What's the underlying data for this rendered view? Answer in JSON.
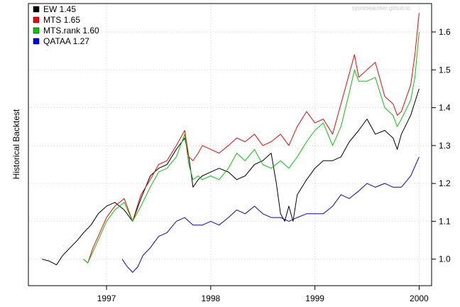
{
  "chart_data": {
    "type": "line",
    "title": "",
    "watermark": "sysresearcher.github.io",
    "ylabel": "Historical Backtest",
    "xlabel": "",
    "xlim": [
      1996.25,
      2000.12
    ],
    "ylim": [
      0.93,
      1.675
    ],
    "x_ticks": [
      1997,
      1998,
      1999,
      2000
    ],
    "x_tick_labels": [
      "1997",
      "1998",
      "1999",
      "2000"
    ],
    "y_ticks": [
      1.0,
      1.1,
      1.2,
      1.3,
      1.4,
      1.5,
      1.6
    ],
    "y_tick_labels": [
      "1.0",
      "1.1",
      "1.2",
      "1.3",
      "1.4",
      "1.5",
      "1.6"
    ],
    "grid": true,
    "legend_position": "top-left",
    "legend": [
      {
        "label": "EW 1.45",
        "color": "#000000"
      },
      {
        "label": "MTS 1.65",
        "color": "#ff0000"
      },
      {
        "label": "MTS.rank 1.60",
        "color": "#00cc00"
      },
      {
        "label": "QATAA 1.27",
        "color": "#0000ff"
      }
    ],
    "series": [
      {
        "name": "EW 1.45",
        "color": "#000000",
        "x": [
          1996.38,
          1996.45,
          1996.52,
          1996.58,
          1996.65,
          1996.72,
          1996.78,
          1996.85,
          1996.92,
          1997.0,
          1997.08,
          1997.17,
          1997.25,
          1997.33,
          1997.42,
          1997.5,
          1997.58,
          1997.67,
          1997.75,
          1997.79,
          1997.83,
          1997.88,
          1997.92,
          1998.0,
          1998.08,
          1998.17,
          1998.25,
          1998.33,
          1998.42,
          1998.5,
          1998.58,
          1998.63,
          1998.67,
          1998.71,
          1998.75,
          1998.79,
          1998.83,
          1998.92,
          1999.0,
          1999.08,
          1999.17,
          1999.25,
          1999.33,
          1999.42,
          1999.5,
          1999.58,
          1999.67,
          1999.75,
          1999.79,
          1999.83,
          1999.92,
          2000.0
        ],
        "values": [
          1.0,
          0.995,
          0.985,
          1.01,
          1.03,
          1.05,
          1.07,
          1.09,
          1.12,
          1.14,
          1.15,
          1.13,
          1.1,
          1.16,
          1.22,
          1.24,
          1.25,
          1.29,
          1.32,
          1.27,
          1.19,
          1.21,
          1.22,
          1.23,
          1.24,
          1.23,
          1.21,
          1.22,
          1.25,
          1.26,
          1.28,
          1.2,
          1.12,
          1.1,
          1.14,
          1.1,
          1.17,
          1.21,
          1.24,
          1.26,
          1.26,
          1.27,
          1.31,
          1.34,
          1.37,
          1.33,
          1.34,
          1.32,
          1.29,
          1.33,
          1.38,
          1.45
        ]
      },
      {
        "name": "MTS 1.65",
        "color": "#ff0000",
        "x": [
          1996.78,
          1996.82,
          1996.87,
          1996.92,
          1997.0,
          1997.08,
          1997.17,
          1997.25,
          1997.33,
          1997.42,
          1997.5,
          1997.58,
          1997.67,
          1997.75,
          1997.79,
          1997.83,
          1997.88,
          1997.92,
          1998.0,
          1998.08,
          1998.17,
          1998.25,
          1998.33,
          1998.42,
          1998.5,
          1998.58,
          1998.67,
          1998.75,
          1998.83,
          1998.92,
          1999.0,
          1999.08,
          1999.17,
          1999.25,
          1999.33,
          1999.38,
          1999.42,
          1999.5,
          1999.58,
          1999.67,
          1999.75,
          1999.79,
          1999.83,
          1999.92,
          1999.96,
          2000.0
        ],
        "values": [
          1.0,
          0.99,
          1.03,
          1.06,
          1.11,
          1.14,
          1.16,
          1.1,
          1.17,
          1.21,
          1.25,
          1.26,
          1.3,
          1.34,
          1.27,
          1.26,
          1.28,
          1.3,
          1.29,
          1.28,
          1.3,
          1.32,
          1.31,
          1.33,
          1.3,
          1.31,
          1.33,
          1.3,
          1.35,
          1.39,
          1.36,
          1.37,
          1.33,
          1.41,
          1.49,
          1.54,
          1.48,
          1.5,
          1.52,
          1.43,
          1.41,
          1.38,
          1.39,
          1.46,
          1.54,
          1.65
        ]
      },
      {
        "name": "MTS.rank 1.60",
        "color": "#00cc00",
        "x": [
          1996.78,
          1996.82,
          1996.87,
          1996.92,
          1997.0,
          1997.08,
          1997.17,
          1997.25,
          1997.33,
          1997.42,
          1997.5,
          1997.58,
          1997.67,
          1997.75,
          1997.79,
          1997.83,
          1997.88,
          1997.92,
          1998.0,
          1998.08,
          1998.17,
          1998.25,
          1998.33,
          1998.42,
          1998.5,
          1998.58,
          1998.67,
          1998.75,
          1998.83,
          1998.92,
          1999.0,
          1999.08,
          1999.17,
          1999.25,
          1999.33,
          1999.38,
          1999.42,
          1999.5,
          1999.58,
          1999.67,
          1999.75,
          1999.79,
          1999.83,
          1999.92,
          1999.96,
          2000.0
        ],
        "values": [
          1.0,
          0.99,
          1.02,
          1.05,
          1.1,
          1.13,
          1.15,
          1.1,
          1.14,
          1.19,
          1.23,
          1.24,
          1.27,
          1.33,
          1.25,
          1.21,
          1.22,
          1.21,
          1.22,
          1.21,
          1.24,
          1.28,
          1.26,
          1.29,
          1.25,
          1.24,
          1.26,
          1.24,
          1.27,
          1.31,
          1.34,
          1.36,
          1.3,
          1.35,
          1.44,
          1.5,
          1.47,
          1.47,
          1.48,
          1.4,
          1.38,
          1.35,
          1.37,
          1.42,
          1.48,
          1.6
        ]
      },
      {
        "name": "QATAA 1.27",
        "color": "#0000ff",
        "x": [
          1997.15,
          1997.2,
          1997.25,
          1997.3,
          1997.35,
          1997.42,
          1997.5,
          1997.58,
          1997.67,
          1997.75,
          1997.83,
          1997.92,
          1998.0,
          1998.08,
          1998.17,
          1998.25,
          1998.33,
          1998.42,
          1998.5,
          1998.58,
          1998.67,
          1998.75,
          1998.83,
          1998.92,
          1999.0,
          1999.08,
          1999.17,
          1999.25,
          1999.33,
          1999.42,
          1999.5,
          1999.58,
          1999.67,
          1999.75,
          1999.83,
          1999.92,
          2000.0
        ],
        "values": [
          1.0,
          0.98,
          0.965,
          0.98,
          1.01,
          1.03,
          1.06,
          1.07,
          1.1,
          1.11,
          1.09,
          1.09,
          1.1,
          1.09,
          1.11,
          1.13,
          1.12,
          1.14,
          1.12,
          1.11,
          1.11,
          1.1,
          1.11,
          1.12,
          1.12,
          1.12,
          1.14,
          1.17,
          1.16,
          1.18,
          1.2,
          1.19,
          1.2,
          1.19,
          1.19,
          1.22,
          1.27
        ]
      }
    ]
  }
}
